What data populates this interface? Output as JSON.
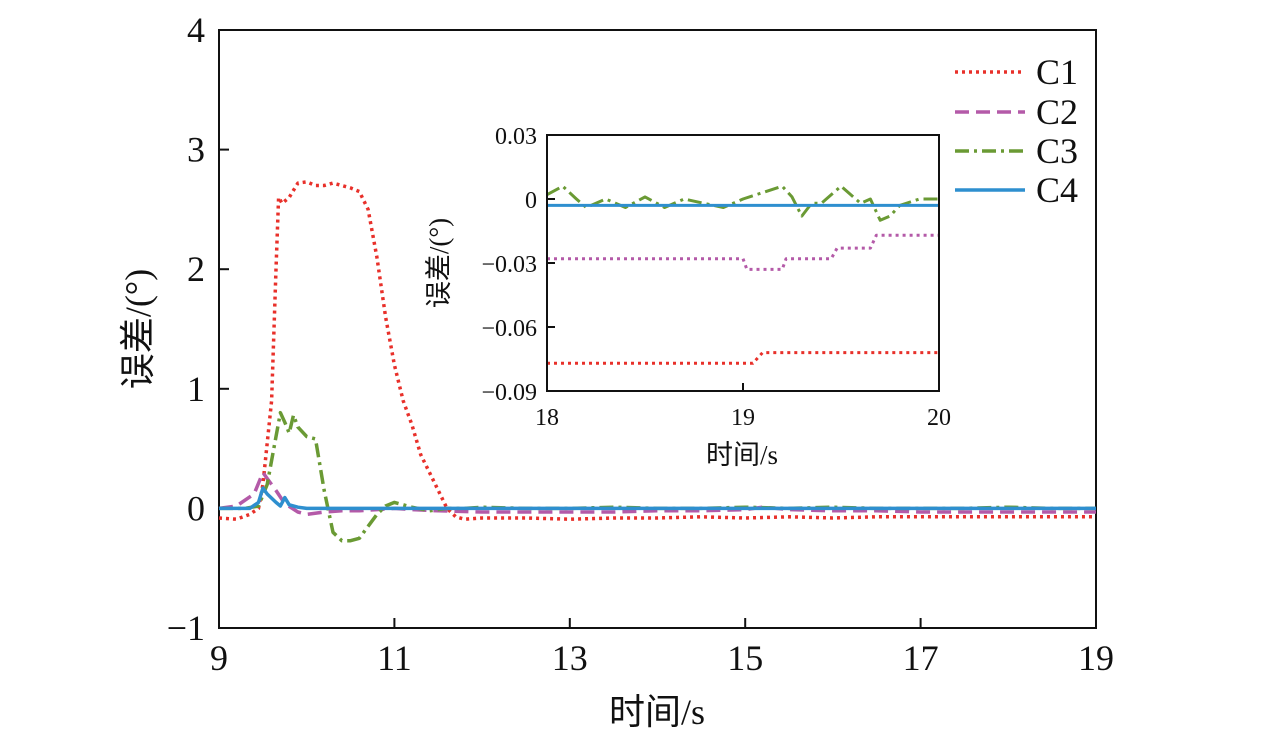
{
  "chart_data": [
    {
      "type": "line",
      "id": "main",
      "xlabel": "时间/s",
      "ylabel": "误差/(°)",
      "xlim": [
        9,
        19
      ],
      "ylim": [
        -1,
        4
      ],
      "xticks": [
        9,
        11,
        13,
        15,
        17,
        19
      ],
      "xtick_labels": [
        "9",
        "11",
        "13",
        "15",
        "17",
        "19"
      ],
      "yticks": [
        -1,
        0,
        1,
        2,
        3,
        4
      ],
      "ytick_labels": [
        "−1",
        "0",
        "1",
        "2",
        "3",
        "4"
      ],
      "legend_position": "top-right",
      "series": [
        {
          "name": "C1",
          "color": "#e8302a",
          "dash": "dot",
          "x": [
            9.0,
            9.2,
            9.35,
            9.45,
            9.5,
            9.6,
            9.65,
            9.68,
            9.72,
            9.8,
            9.9,
            10.0,
            10.1,
            10.2,
            10.3,
            10.4,
            10.5,
            10.6,
            10.7,
            10.8,
            10.9,
            11.0,
            11.1,
            11.2,
            11.3,
            11.4,
            11.5,
            11.6,
            11.7,
            11.8,
            12.0,
            12.5,
            13.0,
            13.5,
            14.0,
            14.5,
            15.0,
            15.5,
            16.0,
            16.5,
            17.0,
            17.5,
            18.0,
            18.5,
            19.0
          ],
          "y": [
            -0.08,
            -0.09,
            -0.05,
            0.0,
            0.2,
            0.9,
            2.0,
            2.6,
            2.55,
            2.6,
            2.72,
            2.73,
            2.7,
            2.7,
            2.72,
            2.7,
            2.68,
            2.65,
            2.5,
            2.1,
            1.6,
            1.2,
            0.9,
            0.7,
            0.45,
            0.3,
            0.15,
            0.0,
            -0.07,
            -0.09,
            -0.08,
            -0.08,
            -0.09,
            -0.08,
            -0.08,
            -0.07,
            -0.08,
            -0.07,
            -0.08,
            -0.07,
            -0.07,
            -0.07,
            -0.07,
            -0.07,
            -0.07
          ]
        },
        {
          "name": "C2",
          "color": "#b45aa8",
          "dash": "dash",
          "x": [
            9.0,
            9.2,
            9.4,
            9.5,
            9.55,
            9.65,
            9.75,
            9.9,
            10.0,
            10.2,
            10.4,
            10.6,
            10.8,
            11.0,
            11.2,
            11.5,
            12.0,
            12.5,
            13.0,
            13.5,
            14.0,
            14.5,
            15.0,
            15.2,
            15.5,
            16.0,
            16.5,
            17.0,
            17.5,
            18.0,
            18.5,
            19.0
          ],
          "y": [
            0.0,
            0.02,
            0.12,
            0.3,
            0.25,
            0.15,
            0.04,
            -0.03,
            -0.05,
            -0.03,
            -0.02,
            -0.02,
            -0.01,
            0.0,
            -0.01,
            -0.02,
            -0.03,
            -0.03,
            -0.03,
            -0.03,
            -0.02,
            -0.02,
            -0.01,
            0.01,
            -0.01,
            -0.02,
            -0.02,
            -0.03,
            -0.03,
            -0.03,
            -0.03,
            -0.03
          ]
        },
        {
          "name": "C3",
          "color": "#6a9a34",
          "dash": "dashdot",
          "x": [
            9.0,
            9.3,
            9.45,
            9.55,
            9.65,
            9.7,
            9.75,
            9.8,
            9.85,
            9.9,
            10.0,
            10.1,
            10.2,
            10.3,
            10.4,
            10.5,
            10.6,
            10.7,
            10.8,
            10.9,
            11.0,
            11.1,
            11.2,
            11.4,
            11.6,
            11.8,
            12.0,
            12.5,
            13.0,
            13.5,
            14.0,
            14.5,
            15.0,
            15.5,
            16.0,
            16.5,
            17.0,
            17.5,
            18.0,
            18.5,
            19.0
          ],
          "y": [
            0.0,
            0.0,
            0.02,
            0.2,
            0.6,
            0.8,
            0.72,
            0.63,
            0.78,
            0.68,
            0.6,
            0.58,
            0.15,
            -0.2,
            -0.27,
            -0.27,
            -0.25,
            -0.15,
            -0.05,
            0.02,
            0.05,
            0.03,
            0.01,
            -0.02,
            0.0,
            0.0,
            0.01,
            0.0,
            0.0,
            0.01,
            0.0,
            0.0,
            0.01,
            0.0,
            0.01,
            0.0,
            0.0,
            0.0,
            0.01,
            0.0,
            0.0
          ]
        },
        {
          "name": "C4",
          "color": "#2e8fcf",
          "dash": "solid",
          "x": [
            9.0,
            9.35,
            9.45,
            9.5,
            9.55,
            9.65,
            9.7,
            9.75,
            9.8,
            9.9,
            10.0,
            10.5,
            11.0,
            12.0,
            13.0,
            14.0,
            15.0,
            16.0,
            17.0,
            18.0,
            19.0
          ],
          "y": [
            0.0,
            0.0,
            0.05,
            0.17,
            0.12,
            0.05,
            0.02,
            0.09,
            0.03,
            0.01,
            0.0,
            0.0,
            0.0,
            0.0,
            0.0,
            0.0,
            0.0,
            0.0,
            0.0,
            0.0,
            0.0
          ]
        }
      ]
    },
    {
      "type": "line",
      "id": "inset",
      "xlabel": "时间/s",
      "ylabel": "误差/(°)",
      "xlim": [
        18,
        20
      ],
      "ylim": [
        -0.09,
        0.03
      ],
      "xticks": [
        18,
        19,
        20
      ],
      "xtick_labels": [
        "18",
        "19",
        "20"
      ],
      "yticks": [
        -0.09,
        -0.06,
        -0.03,
        0,
        0.03
      ],
      "ytick_labels": [
        "−0.09",
        "−0.06",
        "−0.03",
        "0",
        "0.03"
      ],
      "series": [
        {
          "name": "C1",
          "color": "#e8302a",
          "dash": "dot",
          "x": [
            18.0,
            19.05,
            19.1,
            20.0
          ],
          "y": [
            -0.077,
            -0.077,
            -0.072,
            -0.072
          ]
        },
        {
          "name": "C2",
          "color": "#b45aa8",
          "dash": "dot",
          "x": [
            18.0,
            19.0,
            19.02,
            19.2,
            19.22,
            19.45,
            19.48,
            19.65,
            19.68,
            20.0
          ],
          "y": [
            -0.028,
            -0.028,
            -0.033,
            -0.033,
            -0.028,
            -0.028,
            -0.023,
            -0.023,
            -0.017,
            -0.017
          ]
        },
        {
          "name": "C3",
          "color": "#6a9a34",
          "dash": "dashdot",
          "x": [
            18.0,
            18.08,
            18.15,
            18.2,
            18.3,
            18.4,
            18.5,
            18.6,
            18.7,
            18.8,
            18.9,
            19.0,
            19.1,
            19.2,
            19.25,
            19.3,
            19.35,
            19.4,
            19.5,
            19.6,
            19.65,
            19.7,
            19.75,
            19.8,
            19.9,
            20.0
          ],
          "y": [
            0.002,
            0.006,
            0.0,
            -0.004,
            0.0,
            -0.004,
            0.001,
            -0.004,
            0.0,
            -0.002,
            -0.004,
            0.0,
            0.003,
            0.006,
            0.001,
            -0.008,
            -0.002,
            -0.002,
            0.006,
            -0.002,
            0.0,
            -0.01,
            -0.008,
            -0.003,
            0.0,
            0.0
          ]
        },
        {
          "name": "C4",
          "color": "#2e8fcf",
          "dash": "solid",
          "x": [
            18.0,
            20.0
          ],
          "y": [
            -0.003,
            -0.003
          ]
        }
      ]
    }
  ]
}
